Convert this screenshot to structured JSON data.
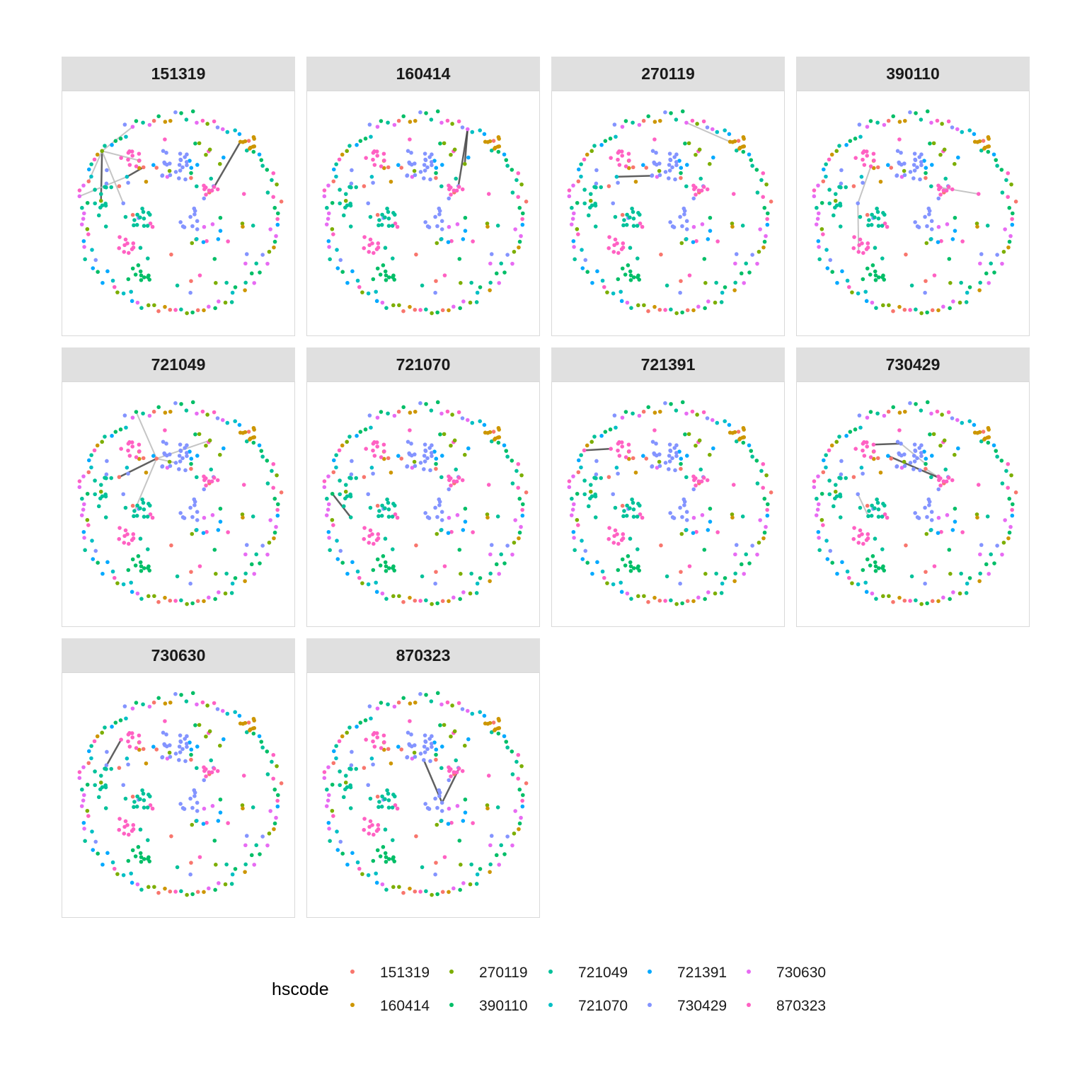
{
  "chart_data": {
    "type": "scatter",
    "subtype": "network-graph-facets",
    "facet_variable": "hscode",
    "facets": [
      "151319",
      "160414",
      "270119",
      "390110",
      "721049",
      "721070",
      "721391",
      "730429",
      "730630",
      "870323"
    ],
    "facet_layout": {
      "columns": 4,
      "rows": 3
    },
    "layout": "circle",
    "axes_visible": false,
    "grid": false,
    "legend": {
      "title": "hscode",
      "placement": "bottom",
      "entries": [
        {
          "label": "151319",
          "color": "#F8766D"
        },
        {
          "label": "160414",
          "color": "#CD9600"
        },
        {
          "label": "270119",
          "color": "#7CAE00"
        },
        {
          "label": "390110",
          "color": "#00BE67"
        },
        {
          "label": "721049",
          "color": "#00C19A"
        },
        {
          "label": "721070",
          "color": "#00BFC4"
        },
        {
          "label": "721391",
          "color": "#00A9FF"
        },
        {
          "label": "730429",
          "color": "#8494FF"
        },
        {
          "label": "730630",
          "color": "#E76BF3"
        },
        {
          "label": "870323",
          "color": "#FF61C3"
        }
      ]
    },
    "node_color_order": [
      "151319",
      "160414",
      "270119",
      "390110",
      "721049",
      "721070",
      "721391",
      "730429",
      "730630",
      "870323"
    ],
    "edge_color": "#555555",
    "panel_background": "#ffffff",
    "strip_background": "#e0e0e0",
    "panel_border": "#d9d9d9"
  }
}
